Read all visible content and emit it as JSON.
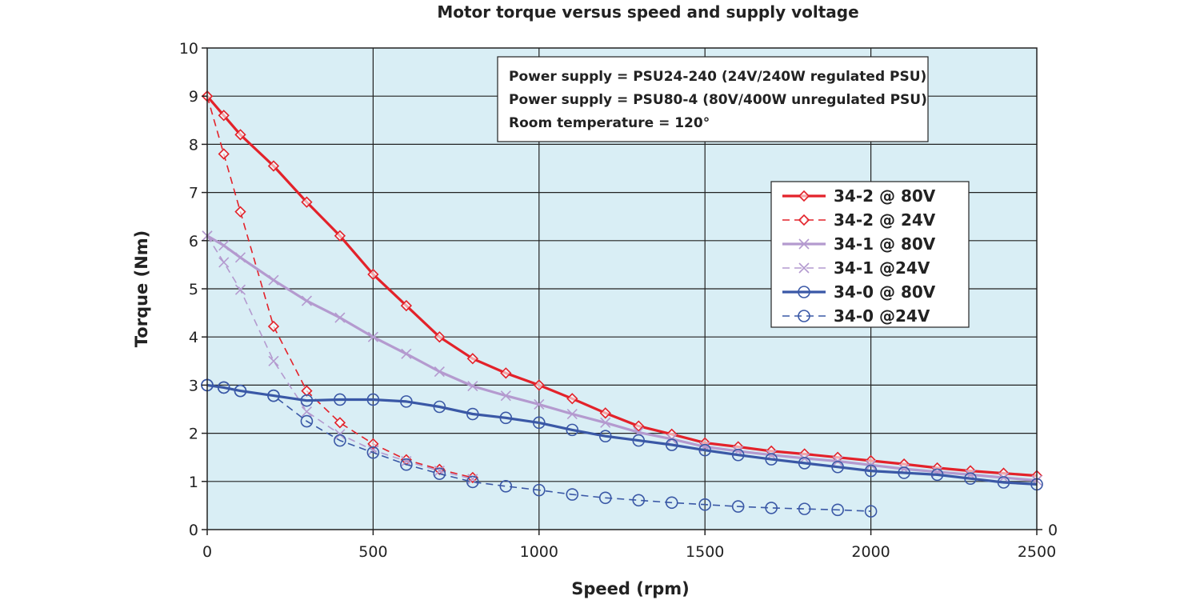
{
  "chart_data": {
    "type": "line",
    "title": "Motor torque versus speed and supply voltage",
    "xlabel": "Speed (rpm)",
    "ylabel": "Torque (Nm)",
    "xlim": [
      0,
      2500
    ],
    "ylim": [
      0,
      10
    ],
    "x_ticks": [
      "0",
      "500",
      "1000",
      "1500",
      "2000",
      "2500"
    ],
    "y_ticks": [
      "0",
      "1",
      "2",
      "3",
      "4",
      "5",
      "6",
      "7",
      "8",
      "9",
      "10"
    ],
    "right_axis_label": "0",
    "grid": true,
    "legend_position": "right",
    "annotations": [
      "Power supply = PSU24-240 (24V/240W regulated PSU)",
      "Power supply = PSU80-4 (80V/400W unregulated PSU)",
      "Room temperature = 120°"
    ],
    "series": [
      {
        "name": "34-2 @ 80V",
        "color": "#e3222a",
        "dash": false,
        "marker": "diamond",
        "x": [
          0,
          50,
          100,
          200,
          300,
          400,
          500,
          600,
          700,
          800,
          900,
          1000,
          1100,
          1200,
          1300,
          1400,
          1500,
          1600,
          1700,
          1800,
          1900,
          2000,
          2100,
          2200,
          2300,
          2400,
          2500
        ],
        "y": [
          9.0,
          8.6,
          8.2,
          7.55,
          6.8,
          6.1,
          5.3,
          4.65,
          4.0,
          3.55,
          3.25,
          3.0,
          2.72,
          2.42,
          2.15,
          1.98,
          1.8,
          1.72,
          1.63,
          1.57,
          1.5,
          1.43,
          1.36,
          1.28,
          1.22,
          1.17,
          1.12
        ]
      },
      {
        "name": "34-2 @ 24V",
        "color": "#e3222a",
        "dash": true,
        "marker": "diamond",
        "x": [
          0,
          50,
          100,
          200,
          300,
          400,
          500,
          600,
          700,
          800
        ],
        "y": [
          9.0,
          7.8,
          6.6,
          4.22,
          2.88,
          2.22,
          1.78,
          1.45,
          1.25,
          1.08
        ]
      },
      {
        "name": "34-1 @ 80V",
        "color": "#b49acf",
        "dash": false,
        "marker": "x",
        "x": [
          0,
          50,
          100,
          200,
          300,
          400,
          500,
          600,
          700,
          800,
          900,
          1000,
          1100,
          1200,
          1300,
          1400,
          1500,
          1600,
          1700,
          1800,
          1900,
          2000,
          2100,
          2200,
          2300,
          2400,
          2500
        ],
        "y": [
          6.1,
          5.9,
          5.65,
          5.18,
          4.75,
          4.4,
          4.0,
          3.65,
          3.28,
          2.98,
          2.78,
          2.6,
          2.4,
          2.22,
          2.02,
          1.88,
          1.72,
          1.63,
          1.55,
          1.48,
          1.42,
          1.34,
          1.26,
          1.2,
          1.14,
          1.08,
          1.02
        ]
      },
      {
        "name": "34-1 @24V",
        "color": "#b49acf",
        "dash": true,
        "marker": "x",
        "x": [
          0,
          50,
          100,
          200,
          300,
          400,
          500,
          600,
          700,
          800
        ],
        "y": [
          6.1,
          5.55,
          4.98,
          3.5,
          2.45,
          1.98,
          1.65,
          1.42,
          1.22,
          1.05
        ]
      },
      {
        "name": "34-0 @ 80V",
        "color": "#3a58a6",
        "dash": false,
        "marker": "circle",
        "x": [
          0,
          50,
          100,
          200,
          300,
          400,
          500,
          600,
          700,
          800,
          900,
          1000,
          1100,
          1200,
          1300,
          1400,
          1500,
          1600,
          1700,
          1800,
          1900,
          2000,
          2100,
          2200,
          2300,
          2400,
          2500
        ],
        "y": [
          3.0,
          2.95,
          2.88,
          2.78,
          2.68,
          2.7,
          2.7,
          2.66,
          2.55,
          2.4,
          2.32,
          2.22,
          2.07,
          1.94,
          1.85,
          1.76,
          1.65,
          1.55,
          1.46,
          1.38,
          1.3,
          1.22,
          1.18,
          1.14,
          1.06,
          0.98,
          0.94
        ]
      },
      {
        "name": "34-0 @24V",
        "color": "#3a58a6",
        "dash": true,
        "marker": "circle",
        "x": [
          0,
          50,
          100,
          200,
          300,
          400,
          500,
          600,
          700,
          800,
          900,
          1000,
          1100,
          1200,
          1300,
          1400,
          1500,
          1600,
          1700,
          1800,
          1900,
          2000
        ],
        "y": [
          3.0,
          2.95,
          2.88,
          2.78,
          2.25,
          1.85,
          1.6,
          1.35,
          1.16,
          0.99,
          0.9,
          0.82,
          0.73,
          0.66,
          0.61,
          0.56,
          0.52,
          0.48,
          0.45,
          0.43,
          0.41,
          0.38
        ]
      }
    ]
  }
}
